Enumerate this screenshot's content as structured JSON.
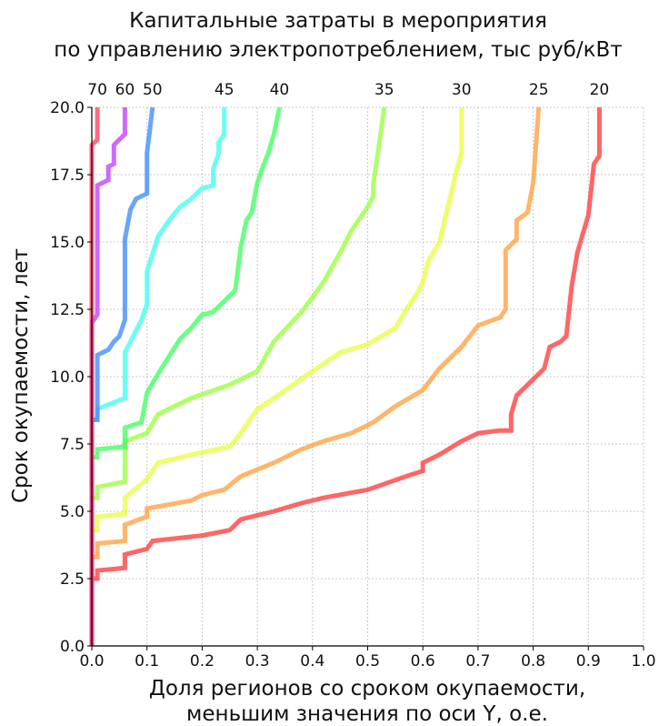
{
  "chart_data": {
    "type": "line",
    "title": "Капитальные затраты в мероприятия\nпо управлению электропотреблением, тыс руб/кВт",
    "xlabel": "Доля регионов со сроком окупаемости,\nменьшим значения по оси Y, о.е.",
    "ylabel": "Срок окупаемости, лет",
    "xlim": [
      0,
      1
    ],
    "ylim": [
      0,
      20
    ],
    "xticks": [
      "0.0",
      "0.1",
      "0.2",
      "0.3",
      "0.4",
      "0.5",
      "0.6",
      "0.7",
      "0.8",
      "0.9",
      "1.0"
    ],
    "yticks": [
      "0.0",
      "2.5",
      "5.0",
      "7.5",
      "10.0",
      "12.5",
      "15.0",
      "17.5",
      "20.0"
    ],
    "grid": true,
    "series": [
      {
        "name": "20",
        "color": "#ff3b3b",
        "points": [
          [
            0.0,
            0
          ],
          [
            0.0,
            2.5
          ],
          [
            0.01,
            2.5
          ],
          [
            0.01,
            2.8
          ],
          [
            0.06,
            2.9
          ],
          [
            0.06,
            3.4
          ],
          [
            0.1,
            3.6
          ],
          [
            0.11,
            3.9
          ],
          [
            0.2,
            4.1
          ],
          [
            0.25,
            4.3
          ],
          [
            0.27,
            4.7
          ],
          [
            0.33,
            5.0
          ],
          [
            0.38,
            5.3
          ],
          [
            0.42,
            5.5
          ],
          [
            0.5,
            5.8
          ],
          [
            0.57,
            6.3
          ],
          [
            0.6,
            6.5
          ],
          [
            0.6,
            6.8
          ],
          [
            0.63,
            7.1
          ],
          [
            0.67,
            7.6
          ],
          [
            0.7,
            7.9
          ],
          [
            0.74,
            8.0
          ],
          [
            0.76,
            8.0
          ],
          [
            0.76,
            8.6
          ],
          [
            0.77,
            9.3
          ],
          [
            0.79,
            9.7
          ],
          [
            0.8,
            9.9
          ],
          [
            0.82,
            10.3
          ],
          [
            0.83,
            11.1
          ],
          [
            0.85,
            11.3
          ],
          [
            0.86,
            11.5
          ],
          [
            0.87,
            13.4
          ],
          [
            0.88,
            14.6
          ],
          [
            0.89,
            15.3
          ],
          [
            0.9,
            16.0
          ],
          [
            0.91,
            17.9
          ],
          [
            0.92,
            18.2
          ],
          [
            0.92,
            20
          ]
        ]
      },
      {
        "name": "25",
        "color": "#ffa040",
        "points": [
          [
            0.0,
            0
          ],
          [
            0.0,
            3.3
          ],
          [
            0.01,
            3.3
          ],
          [
            0.01,
            3.8
          ],
          [
            0.06,
            3.9
          ],
          [
            0.06,
            4.5
          ],
          [
            0.1,
            4.8
          ],
          [
            0.1,
            5.1
          ],
          [
            0.18,
            5.4
          ],
          [
            0.2,
            5.6
          ],
          [
            0.24,
            5.8
          ],
          [
            0.27,
            6.3
          ],
          [
            0.33,
            6.8
          ],
          [
            0.38,
            7.3
          ],
          [
            0.42,
            7.6
          ],
          [
            0.47,
            7.9
          ],
          [
            0.51,
            8.3
          ],
          [
            0.55,
            8.9
          ],
          [
            0.6,
            9.5
          ],
          [
            0.63,
            10.3
          ],
          [
            0.67,
            11.1
          ],
          [
            0.7,
            11.9
          ],
          [
            0.74,
            12.2
          ],
          [
            0.75,
            12.5
          ],
          [
            0.75,
            14.7
          ],
          [
            0.77,
            15.1
          ],
          [
            0.77,
            15.8
          ],
          [
            0.79,
            16.1
          ],
          [
            0.8,
            17.2
          ],
          [
            0.81,
            20
          ]
        ]
      },
      {
        "name": "30",
        "color": "#e8ff40",
        "points": [
          [
            0.0,
            0
          ],
          [
            0.0,
            4.3
          ],
          [
            0.01,
            4.3
          ],
          [
            0.01,
            4.8
          ],
          [
            0.06,
            4.9
          ],
          [
            0.06,
            5.5
          ],
          [
            0.1,
            6.2
          ],
          [
            0.12,
            6.8
          ],
          [
            0.18,
            7.1
          ],
          [
            0.25,
            7.4
          ],
          [
            0.27,
            7.9
          ],
          [
            0.3,
            8.8
          ],
          [
            0.33,
            9.2
          ],
          [
            0.4,
            10.2
          ],
          [
            0.45,
            10.9
          ],
          [
            0.5,
            11.2
          ],
          [
            0.55,
            11.8
          ],
          [
            0.57,
            12.5
          ],
          [
            0.59,
            13.1
          ],
          [
            0.6,
            13.5
          ],
          [
            0.61,
            14.3
          ],
          [
            0.63,
            15.0
          ],
          [
            0.65,
            16.7
          ],
          [
            0.66,
            17.6
          ],
          [
            0.67,
            18.3
          ],
          [
            0.67,
            20
          ]
        ]
      },
      {
        "name": "35",
        "color": "#9aff40",
        "points": [
          [
            0.0,
            0
          ],
          [
            0.0,
            5.5
          ],
          [
            0.01,
            5.5
          ],
          [
            0.01,
            5.9
          ],
          [
            0.06,
            6.1
          ],
          [
            0.06,
            7.6
          ],
          [
            0.1,
            7.9
          ],
          [
            0.12,
            8.6
          ],
          [
            0.18,
            9.2
          ],
          [
            0.25,
            9.7
          ],
          [
            0.3,
            10.2
          ],
          [
            0.33,
            11.3
          ],
          [
            0.38,
            12.4
          ],
          [
            0.42,
            13.5
          ],
          [
            0.45,
            14.6
          ],
          [
            0.47,
            15.4
          ],
          [
            0.49,
            16.0
          ],
          [
            0.5,
            16.3
          ],
          [
            0.51,
            16.7
          ],
          [
            0.51,
            17.1
          ],
          [
            0.52,
            18.5
          ],
          [
            0.53,
            20
          ]
        ]
      },
      {
        "name": "40",
        "color": "#40ff60",
        "points": [
          [
            0.0,
            0
          ],
          [
            0.0,
            7.0
          ],
          [
            0.01,
            7.0
          ],
          [
            0.01,
            7.3
          ],
          [
            0.06,
            7.4
          ],
          [
            0.06,
            8.1
          ],
          [
            0.09,
            8.3
          ],
          [
            0.1,
            9.4
          ],
          [
            0.12,
            10.1
          ],
          [
            0.16,
            11.4
          ],
          [
            0.18,
            11.8
          ],
          [
            0.2,
            12.3
          ],
          [
            0.22,
            12.4
          ],
          [
            0.24,
            12.8
          ],
          [
            0.26,
            13.2
          ],
          [
            0.27,
            14.8
          ],
          [
            0.28,
            15.8
          ],
          [
            0.29,
            16.1
          ],
          [
            0.3,
            17.2
          ],
          [
            0.31,
            17.8
          ],
          [
            0.32,
            18.3
          ],
          [
            0.33,
            19.0
          ],
          [
            0.34,
            20
          ]
        ]
      },
      {
        "name": "45",
        "color": "#40fff0",
        "points": [
          [
            0.0,
            0
          ],
          [
            0.0,
            8.4
          ],
          [
            0.01,
            8.4
          ],
          [
            0.01,
            8.8
          ],
          [
            0.06,
            9.2
          ],
          [
            0.06,
            10.9
          ],
          [
            0.07,
            11.3
          ],
          [
            0.09,
            12.1
          ],
          [
            0.1,
            12.7
          ],
          [
            0.1,
            13.9
          ],
          [
            0.12,
            15.2
          ],
          [
            0.14,
            15.8
          ],
          [
            0.16,
            16.3
          ],
          [
            0.18,
            16.6
          ],
          [
            0.2,
            17.0
          ],
          [
            0.22,
            17.1
          ],
          [
            0.22,
            17.7
          ],
          [
            0.23,
            18.3
          ],
          [
            0.23,
            18.7
          ],
          [
            0.24,
            19.0
          ],
          [
            0.24,
            20
          ]
        ]
      },
      {
        "name": "50",
        "color": "#3d8cff",
        "points": [
          [
            0.0,
            0
          ],
          [
            0.0,
            8.4
          ],
          [
            0.01,
            8.4
          ],
          [
            0.01,
            10.8
          ],
          [
            0.03,
            11.0
          ],
          [
            0.04,
            11.3
          ],
          [
            0.05,
            11.5
          ],
          [
            0.06,
            12.1
          ],
          [
            0.06,
            15.1
          ],
          [
            0.07,
            16.2
          ],
          [
            0.08,
            16.6
          ],
          [
            0.1,
            16.8
          ],
          [
            0.1,
            18.3
          ],
          [
            0.11,
            20
          ]
        ]
      },
      {
        "name": "60",
        "color": "#c040ff",
        "points": [
          [
            0.0,
            0
          ],
          [
            0.0,
            12.0
          ],
          [
            0.01,
            12.3
          ],
          [
            0.01,
            17.1
          ],
          [
            0.03,
            17.3
          ],
          [
            0.03,
            17.8
          ],
          [
            0.04,
            17.9
          ],
          [
            0.04,
            18.6
          ],
          [
            0.05,
            18.8
          ],
          [
            0.06,
            19.0
          ],
          [
            0.06,
            20
          ]
        ]
      },
      {
        "name": "70",
        "color": "#ff4060",
        "points": [
          [
            0.0,
            0
          ],
          [
            0.0,
            18.6
          ],
          [
            0.01,
            18.8
          ],
          [
            0.01,
            20
          ]
        ]
      }
    ]
  }
}
